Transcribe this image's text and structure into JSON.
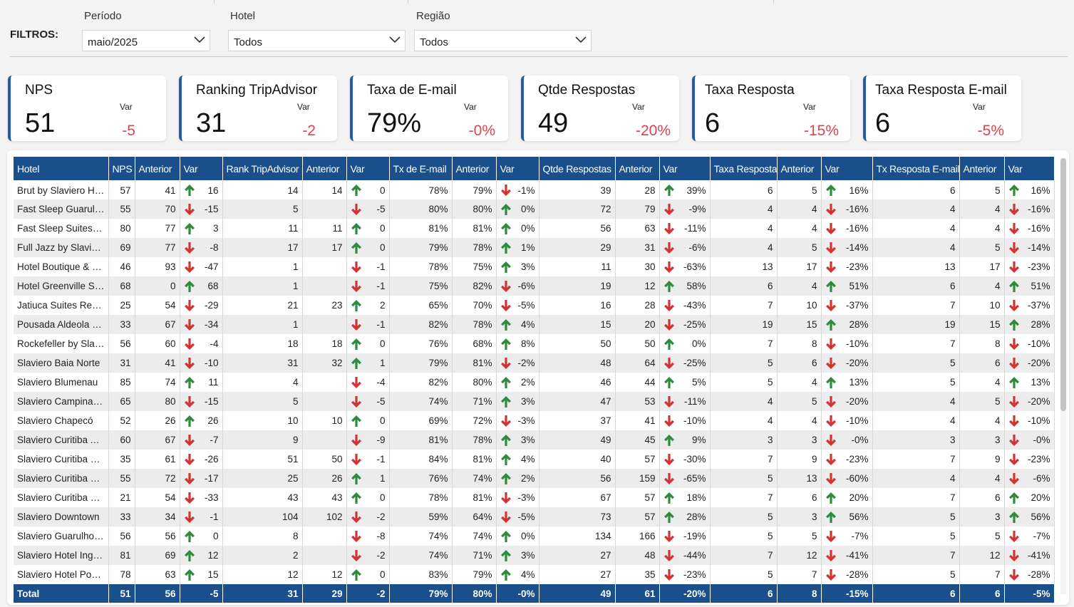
{
  "filters": {
    "label": "FILTROS:",
    "periodo": {
      "label": "Período",
      "value": "maio/2025"
    },
    "hotel": {
      "label": "Hotel",
      "value": "Todos"
    },
    "regiao": {
      "label": "Região",
      "value": "Todos"
    }
  },
  "kpis": [
    {
      "title": "NPS",
      "value": "51",
      "var_label": "Var",
      "var": "-5"
    },
    {
      "title": "Ranking TripAdvisor",
      "value": "31",
      "var_label": "Var",
      "var": "-2"
    },
    {
      "title": "Taxa de E-mail",
      "value": "79%",
      "var_label": "Var",
      "var": "-0%"
    },
    {
      "title": "Qtde Respostas",
      "value": "49",
      "var_label": "Var",
      "var": "-20%"
    },
    {
      "title": "Taxa Resposta",
      "value": "6",
      "var_label": "Var",
      "var": "-15%"
    },
    {
      "title": "Taxa Resposta E-mail",
      "value": "6",
      "var_label": "Var",
      "var": "-5%"
    }
  ],
  "colors": {
    "up": "#2e8b3e",
    "down": "#d03434",
    "header": "#1a4f8b",
    "accent": "#2b57a7"
  },
  "table": {
    "headers": [
      "Hotel",
      "NPS",
      "Anterior",
      "Var",
      "Rank TripAdvisor",
      "Anterior",
      "Var",
      "Tx de E-mail",
      "Anterior",
      "Var",
      "Qtde Respostas",
      "Anterior",
      "Var",
      "Taxa Resposta",
      "Anterior",
      "Var",
      "Tx Resposta E-mail",
      "Anterior",
      "Var"
    ],
    "rows": [
      [
        "Brut by Slaviero Hotel",
        "57",
        "41",
        "up",
        "16",
        "14",
        "14",
        "up",
        "0",
        "78%",
        "79%",
        "down",
        "-1%",
        "39",
        "28",
        "up",
        "39%",
        "6",
        "5",
        "up",
        "16%",
        "6",
        "5",
        "up",
        "16%"
      ],
      [
        "Fast Sleep Guarulhos",
        "55",
        "70",
        "down",
        "-15",
        "5",
        "",
        "down",
        "-5",
        "80%",
        "80%",
        "up",
        "0%",
        "72",
        "79",
        "down",
        "-9%",
        "4",
        "4",
        "down",
        "-16%",
        "4",
        "4",
        "down",
        "-16%"
      ],
      [
        "Fast Sleep Suites Curitiba",
        "80",
        "77",
        "up",
        "3",
        "11",
        "11",
        "up",
        "0",
        "81%",
        "81%",
        "up",
        "0%",
        "56",
        "63",
        "down",
        "-11%",
        "4",
        "4",
        "down",
        "-16%",
        "4",
        "4",
        "down",
        "-16%"
      ],
      [
        "Full Jazz by Slaviero",
        "69",
        "77",
        "down",
        "-8",
        "17",
        "17",
        "up",
        "0",
        "79%",
        "78%",
        "up",
        "1%",
        "29",
        "31",
        "down",
        "-6%",
        "4",
        "5",
        "down",
        "-14%",
        "4",
        "5",
        "down",
        "-14%"
      ],
      [
        "Hotel Boutique & Spa",
        "46",
        "93",
        "down",
        "-47",
        "1",
        "",
        "down",
        "-1",
        "78%",
        "75%",
        "up",
        "3%",
        "11",
        "30",
        "down",
        "-63%",
        "13",
        "17",
        "down",
        "-23%",
        "13",
        "17",
        "down",
        "-23%"
      ],
      [
        "Hotel Greenville Slaviero",
        "68",
        "0",
        "up",
        "68",
        "1",
        "",
        "down",
        "-1",
        "75%",
        "82%",
        "down",
        "-6%",
        "19",
        "12",
        "up",
        "58%",
        "6",
        "4",
        "up",
        "51%",
        "6",
        "4",
        "up",
        "51%"
      ],
      [
        "Jatiuca Suites Resort",
        "25",
        "54",
        "down",
        "-29",
        "21",
        "23",
        "up",
        "2",
        "65%",
        "70%",
        "down",
        "-5%",
        "16",
        "28",
        "down",
        "-43%",
        "7",
        "10",
        "down",
        "-37%",
        "7",
        "10",
        "down",
        "-37%"
      ],
      [
        "Pousada Aldeola Slaviero",
        "33",
        "67",
        "down",
        "-34",
        "1",
        "",
        "down",
        "-1",
        "82%",
        "78%",
        "up",
        "4%",
        "15",
        "20",
        "down",
        "-25%",
        "19",
        "15",
        "up",
        "28%",
        "19",
        "15",
        "up",
        "28%"
      ],
      [
        "Rockefeller by Slaviero",
        "56",
        "60",
        "down",
        "-4",
        "18",
        "18",
        "up",
        "0",
        "76%",
        "68%",
        "up",
        "8%",
        "50",
        "50",
        "up",
        "0%",
        "7",
        "8",
        "down",
        "-10%",
        "7",
        "8",
        "down",
        "-10%"
      ],
      [
        "Slaviero Baia Norte",
        "31",
        "41",
        "down",
        "-10",
        "31",
        "32",
        "up",
        "1",
        "79%",
        "81%",
        "down",
        "-2%",
        "48",
        "64",
        "down",
        "-25%",
        "5",
        "6",
        "down",
        "-20%",
        "5",
        "6",
        "down",
        "-20%"
      ],
      [
        "Slaviero Blumenau",
        "85",
        "74",
        "up",
        "11",
        "4",
        "",
        "down",
        "-4",
        "82%",
        "80%",
        "up",
        "2%",
        "46",
        "44",
        "up",
        "5%",
        "5",
        "4",
        "up",
        "13%",
        "5",
        "4",
        "up",
        "13%"
      ],
      [
        "Slaviero Campinas Cambui",
        "65",
        "80",
        "down",
        "-15",
        "5",
        "",
        "down",
        "-5",
        "74%",
        "71%",
        "up",
        "3%",
        "47",
        "53",
        "down",
        "-11%",
        "4",
        "5",
        "down",
        "-20%",
        "4",
        "5",
        "down",
        "-20%"
      ],
      [
        "Slaviero Chapecó",
        "52",
        "26",
        "up",
        "26",
        "10",
        "10",
        "up",
        "0",
        "69%",
        "72%",
        "down",
        "-3%",
        "37",
        "41",
        "down",
        "-10%",
        "4",
        "4",
        "down",
        "-10%",
        "4",
        "4",
        "down",
        "-10%"
      ],
      [
        "Slaviero Curitiba Aeroporto",
        "60",
        "67",
        "down",
        "-7",
        "9",
        "",
        "down",
        "-9",
        "81%",
        "78%",
        "up",
        "3%",
        "49",
        "45",
        "up",
        "9%",
        "3",
        "3",
        "down",
        "-0%",
        "3",
        "3",
        "down",
        "-0%"
      ],
      [
        "Slaviero Curitiba Batel",
        "35",
        "61",
        "down",
        "-26",
        "51",
        "50",
        "down",
        "-1",
        "84%",
        "81%",
        "up",
        "4%",
        "40",
        "57",
        "down",
        "-30%",
        "7",
        "9",
        "down",
        "-23%",
        "7",
        "9",
        "down",
        "-23%"
      ],
      [
        "Slaviero Curitiba Centro",
        "55",
        "72",
        "down",
        "-17",
        "25",
        "26",
        "up",
        "1",
        "76%",
        "74%",
        "up",
        "2%",
        "56",
        "159",
        "down",
        "-65%",
        "5",
        "13",
        "down",
        "-60%",
        "4",
        "4",
        "down",
        "-6%"
      ],
      [
        "Slaviero Curitiba Shopping",
        "21",
        "54",
        "down",
        "-33",
        "43",
        "43",
        "up",
        "0",
        "78%",
        "81%",
        "down",
        "-3%",
        "67",
        "57",
        "up",
        "18%",
        "7",
        "6",
        "up",
        "20%",
        "7",
        "6",
        "up",
        "20%"
      ],
      [
        "Slaviero Downtown",
        "33",
        "34",
        "down",
        "-1",
        "104",
        "102",
        "down",
        "-2",
        "59%",
        "64%",
        "down",
        "-5%",
        "73",
        "57",
        "up",
        "28%",
        "5",
        "3",
        "up",
        "56%",
        "5",
        "3",
        "up",
        "56%"
      ],
      [
        "Slaviero Guarulhos Aeroporto",
        "56",
        "56",
        "up",
        "0",
        "8",
        "",
        "down",
        "-8",
        "74%",
        "74%",
        "up",
        "0%",
        "134",
        "166",
        "down",
        "-19%",
        "5",
        "5",
        "down",
        "-7%",
        "5",
        "5",
        "down",
        "-7%"
      ],
      [
        "Slaviero Hotel Ingleses",
        "81",
        "69",
        "up",
        "12",
        "2",
        "",
        "down",
        "-2",
        "74%",
        "71%",
        "up",
        "3%",
        "27",
        "48",
        "down",
        "-44%",
        "7",
        "12",
        "down",
        "-41%",
        "7",
        "12",
        "down",
        "-41%"
      ],
      [
        "Slaviero Hotel Ponta Grossa",
        "78",
        "63",
        "up",
        "15",
        "12",
        "12",
        "up",
        "0",
        "83%",
        "79%",
        "up",
        "4%",
        "27",
        "35",
        "down",
        "-23%",
        "5",
        "7",
        "down",
        "-28%",
        "5",
        "7",
        "down",
        "-28%"
      ]
    ],
    "total": [
      "Total",
      "51",
      "56",
      "-5",
      "31",
      "29",
      "-2",
      "79%",
      "80%",
      "-0%",
      "49",
      "61",
      "-20%",
      "6",
      "8",
      "-15%",
      "6",
      "6",
      "-5%"
    ]
  }
}
